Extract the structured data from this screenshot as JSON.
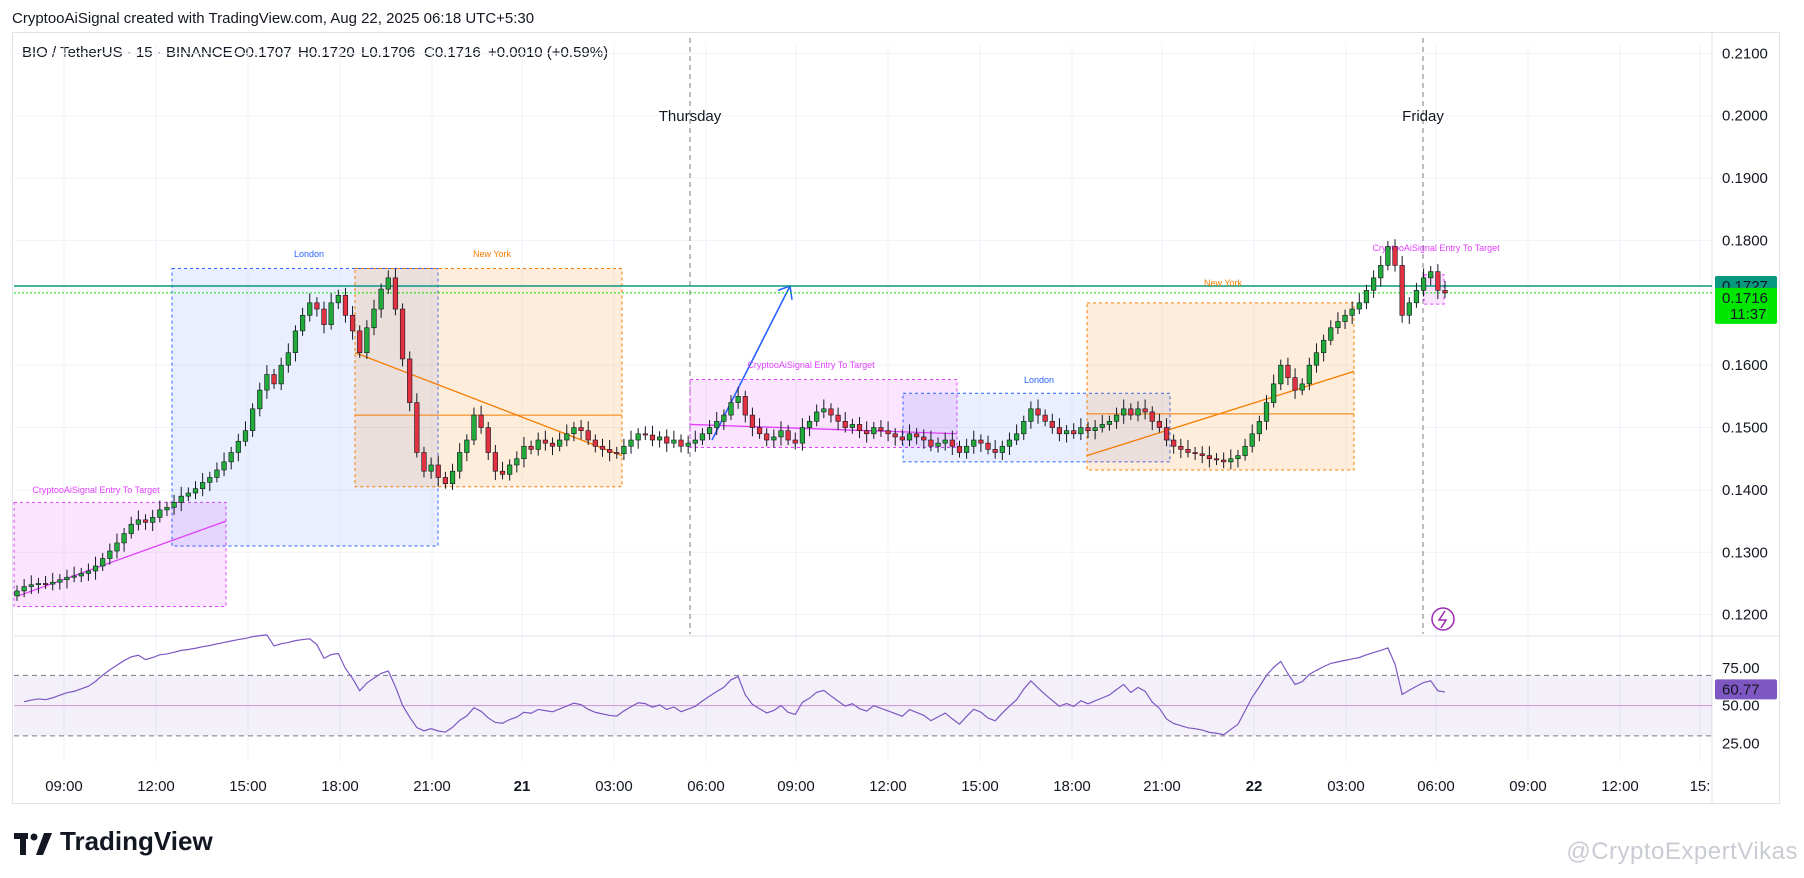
{
  "header": {
    "text": "CryptooAiSignal created with TradingView.com, Aug 22, 2025 06:18 UTC+5:30"
  },
  "legend": {
    "symbol": "BIO / TetherUS · 15 · BINANCE",
    "open": "O0.1707",
    "high": "H0.1720",
    "low": "L0.1706",
    "close": "C0.1716",
    "change": "+0.0010 (+0.59%)"
  },
  "chart_data": {
    "type": "candlestick",
    "price_axis": {
      "ticks": [
        "0.2100",
        "0.2000",
        "0.1900",
        "0.1800",
        "0.1600",
        "0.1500",
        "0.1400",
        "0.1300",
        "0.1200"
      ],
      "range": [
        0.1185,
        0.2115
      ]
    },
    "price_labels": {
      "level": "0.1727",
      "last": "0.1716",
      "countdown": "11:37"
    },
    "time_axis": {
      "ticks": [
        "09:00",
        "12:00",
        "15:00",
        "18:00",
        "21:00",
        "21",
        "03:00",
        "06:00",
        "09:00",
        "12:00",
        "15:00",
        "18:00",
        "21:00",
        "22",
        "03:00",
        "06:00",
        "09:00",
        "12:00",
        "15:"
      ]
    },
    "day_labels": [
      "Thursday",
      "Friday"
    ],
    "session_labels": {
      "london": "London",
      "new_york": "New York"
    },
    "signal_label": "CryptooAiSignal Entry To Target",
    "horizontal_level": 0.1727,
    "close_series": [
      0.1238,
      0.1245,
      0.1248,
      0.125,
      0.1249,
      0.1252,
      0.1256,
      0.126,
      0.1262,
      0.1266,
      0.127,
      0.1278,
      0.129,
      0.1302,
      0.1315,
      0.133,
      0.1345,
      0.1352,
      0.1348,
      0.1356,
      0.1368,
      0.1372,
      0.138,
      0.139,
      0.1395,
      0.1402,
      0.1412,
      0.142,
      0.1432,
      0.1445,
      0.146,
      0.1478,
      0.1495,
      0.153,
      0.156,
      0.1585,
      0.157,
      0.16,
      0.162,
      0.1655,
      0.168,
      0.17,
      0.169,
      0.1665,
      0.17,
      0.1712,
      0.168,
      0.1655,
      0.162,
      0.166,
      0.169,
      0.1722,
      0.174,
      0.169,
      0.161,
      0.154,
      0.146,
      0.143,
      0.144,
      0.142,
      0.141,
      0.143,
      0.146,
      0.148,
      0.152,
      0.15,
      0.146,
      0.143,
      0.1425,
      0.144,
      0.145,
      0.147,
      0.1465,
      0.148,
      0.1475,
      0.147,
      0.148,
      0.149,
      0.15,
      0.1495,
      0.148,
      0.147,
      0.1465,
      0.146,
      0.1458,
      0.147,
      0.148,
      0.149,
      0.1488,
      0.148,
      0.1485,
      0.1475,
      0.148,
      0.147,
      0.1475,
      0.148,
      0.149,
      0.15,
      0.151,
      0.152,
      0.154,
      0.155,
      0.152,
      0.15,
      0.149,
      0.148,
      0.1485,
      0.1495,
      0.148,
      0.1475,
      0.15,
      0.151,
      0.1525,
      0.153,
      0.152,
      0.151,
      0.15,
      0.1505,
      0.1495,
      0.149,
      0.15,
      0.1495,
      0.149,
      0.1485,
      0.148,
      0.149,
      0.1485,
      0.148,
      0.147,
      0.1475,
      0.148,
      0.147,
      0.146,
      0.147,
      0.148,
      0.1475,
      0.1465,
      0.146,
      0.147,
      0.148,
      0.149,
      0.151,
      0.153,
      0.152,
      0.151,
      0.15,
      0.149,
      0.1495,
      0.149,
      0.15,
      0.1495,
      0.15,
      0.1505,
      0.151,
      0.152,
      0.153,
      0.152,
      0.153,
      0.1525,
      0.151,
      0.15,
      0.148,
      0.147,
      0.1465,
      0.146,
      0.1458,
      0.1455,
      0.145,
      0.1448,
      0.1445,
      0.145,
      0.1455,
      0.147,
      0.149,
      0.151,
      0.154,
      0.157,
      0.16,
      0.158,
      0.156,
      0.157,
      0.16,
      0.162,
      0.164,
      0.166,
      0.167,
      0.168,
      0.169,
      0.17,
      0.172,
      0.174,
      0.176,
      0.179,
      0.176,
      0.168,
      0.17,
      0.172,
      0.174,
      0.175,
      0.172,
      0.1716
    ],
    "rsi": {
      "value_label": "60.77",
      "ticks": [
        "75.00",
        "50.00",
        "25.00"
      ],
      "overbought": 70,
      "oversold": 30,
      "middle": 50
    }
  },
  "brand": {
    "name": "TradingView"
  },
  "watermark": {
    "text": "@CryptoExpertVikas"
  },
  "colors": {
    "up": "#22ab3a",
    "down": "#e23141",
    "level": "#089981",
    "last": "#00e600",
    "rsi": "#7e57c2",
    "signal": "#e040fb",
    "london": "#2962ff",
    "newyork": "#f57c00"
  }
}
